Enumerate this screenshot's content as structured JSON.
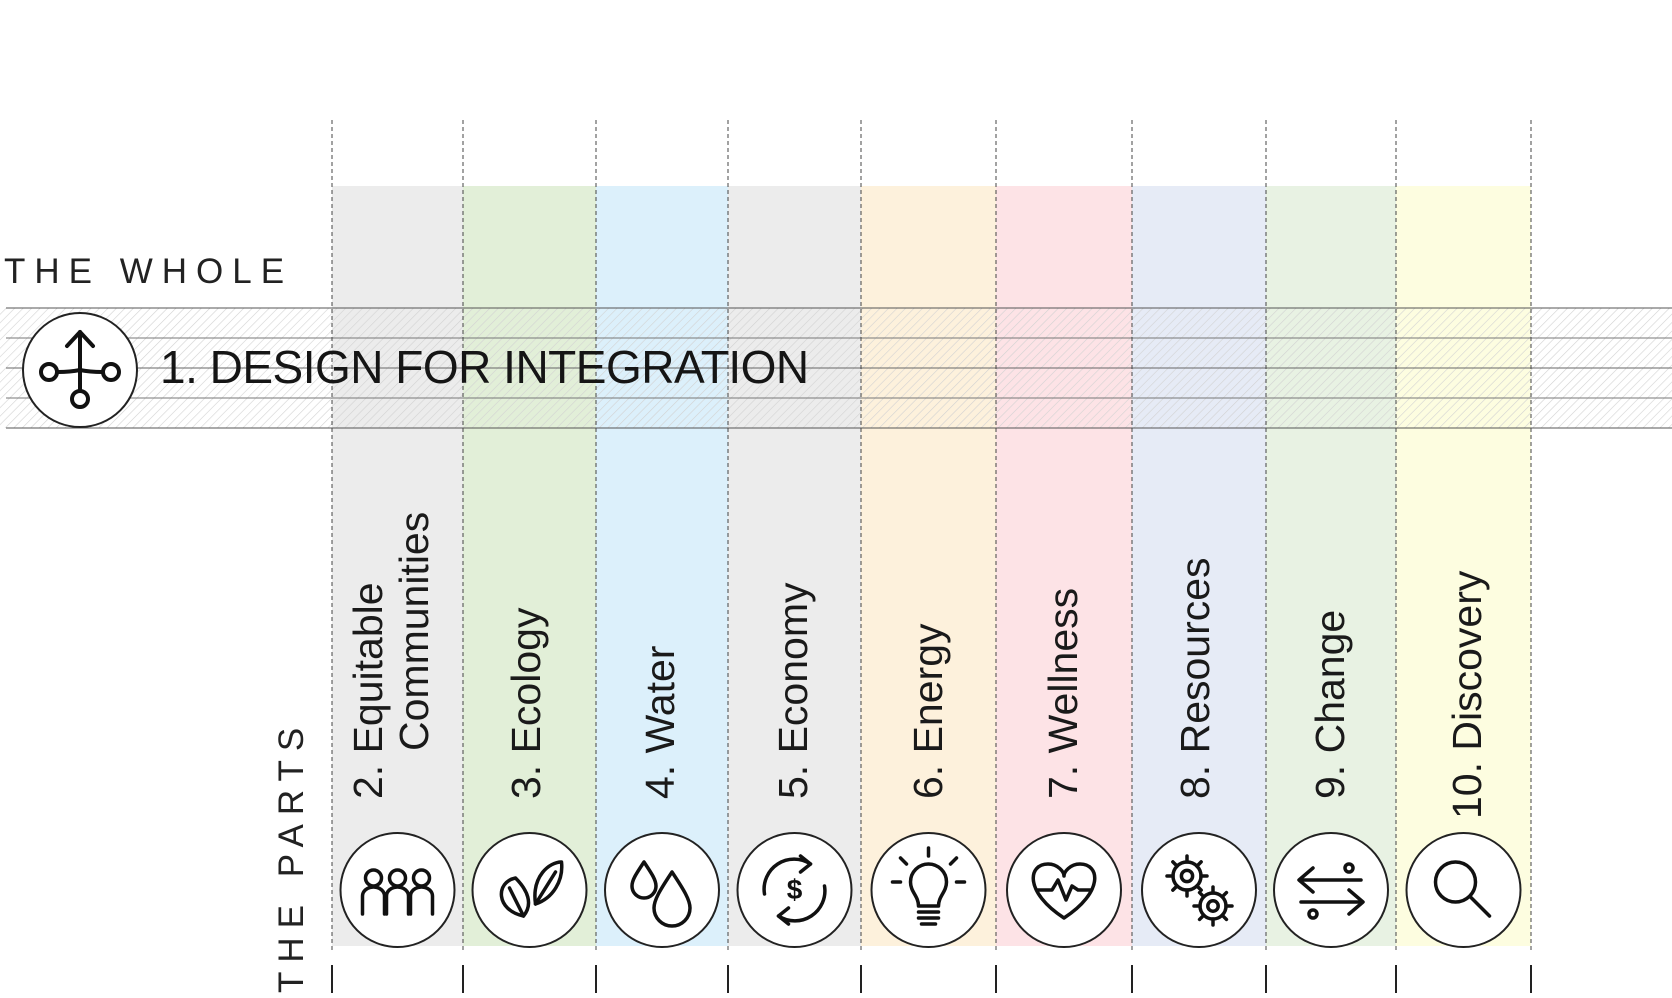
{
  "whole_label": "THE WHOLE",
  "parts_label": "THE PARTS",
  "integration": {
    "title": "1. DESIGN FOR INTEGRATION",
    "icon": "integration-network-icon"
  },
  "columns": [
    {
      "label_line1": "2. Equitable",
      "label_line2": "Communities",
      "icon": "people-icon",
      "tint": "#ececec"
    },
    {
      "label_line1": "3. Ecology",
      "icon": "leaves-icon",
      "tint": "#e2efd8"
    },
    {
      "label_line1": "4. Water",
      "icon": "water-drops-icon",
      "tint": "#dcf0fb"
    },
    {
      "label_line1": "5. Economy",
      "icon": "dollar-cycle-icon",
      "tint": "#ececec"
    },
    {
      "label_line1": "6. Energy",
      "icon": "lightbulb-icon",
      "tint": "#fdf1dc"
    },
    {
      "label_line1": "7. Wellness",
      "icon": "heart-pulse-icon",
      "tint": "#fde3e6"
    },
    {
      "label_line1": "8. Resources",
      "icon": "gears-icon",
      "tint": "#e6ebf6"
    },
    {
      "label_line1": "9. Change",
      "icon": "two-way-arrows-icon",
      "tint": "#e8f2e3"
    },
    {
      "label_line1": "10. Discovery",
      "icon": "magnifier-icon",
      "tint": "#fdfde0"
    }
  ]
}
